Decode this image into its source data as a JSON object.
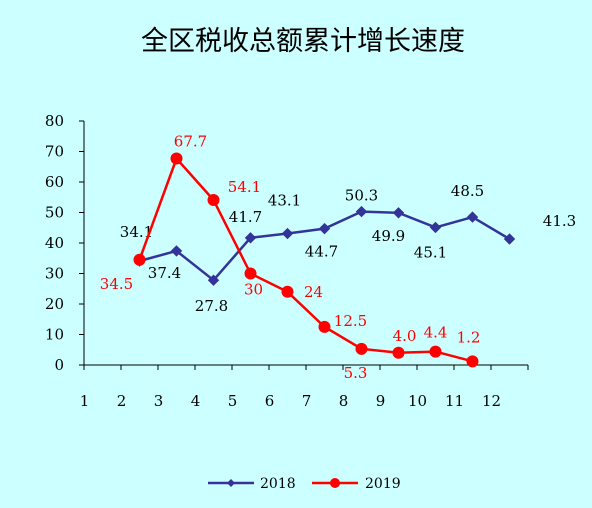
{
  "chart_data": {
    "type": "line",
    "title": "全区税收总额累计增长速度",
    "xlabel": "",
    "ylabel": "",
    "categories": [
      "1",
      "2",
      "3",
      "4",
      "5",
      "6",
      "7",
      "8",
      "9",
      "10",
      "11",
      "12"
    ],
    "yticks": [
      "0",
      "10",
      "20",
      "30",
      "40",
      "50",
      "60",
      "70",
      "80"
    ],
    "ylim": [
      0,
      80
    ],
    "grid": false,
    "legend_position": "bottom",
    "series": [
      {
        "name": "2018",
        "color": "#333399",
        "marker": "diamond",
        "x": [
          2,
          3,
          4,
          5,
          6,
          7,
          8,
          9,
          10,
          11,
          12
        ],
        "values": [
          34.1,
          37.4,
          27.8,
          41.7,
          43.1,
          44.7,
          50.3,
          49.9,
          45.1,
          48.5,
          41.3
        ],
        "labels": [
          "34.1",
          "37.4",
          "27.8",
          "41.7",
          "43.1",
          "44.7",
          "50.3",
          "49.9",
          "45.1",
          "48.5",
          "41.3"
        ]
      },
      {
        "name": "2019",
        "color": "#ff0000",
        "marker": "circle",
        "x": [
          2,
          3,
          4,
          5,
          6,
          7,
          8,
          9,
          10,
          11
        ],
        "values": [
          34.5,
          67.7,
          54.1,
          30,
          24,
          12.5,
          5.3,
          4.0,
          4.4,
          1.2
        ],
        "labels": [
          "34.5",
          "67.7",
          "54.1",
          "30",
          "24",
          "12.5",
          "5.3",
          "4.0",
          "4.4",
          "1.2"
        ]
      }
    ]
  }
}
